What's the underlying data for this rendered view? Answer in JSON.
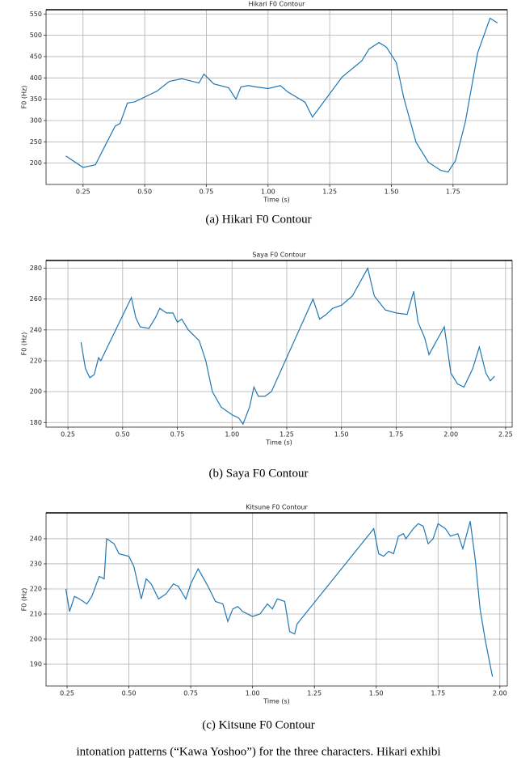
{
  "chart_data": [
    {
      "type": "line",
      "title": "Hikari F0 Contour",
      "xlabel": "Time (s)",
      "ylabel": "F0 (Hz)",
      "caption": "(a)  Hikari F0 Contour",
      "color": "#1f77b4",
      "grid": true,
      "xlim": [
        0.1,
        1.97
      ],
      "ylim": [
        150,
        560
      ],
      "xticks": [
        {
          "value": 0.25,
          "label": "0.25"
        },
        {
          "value": 0.5,
          "label": "0.50"
        },
        {
          "value": 0.75,
          "label": "0.75"
        },
        {
          "value": 1,
          "label": "1.00"
        },
        {
          "value": 1.25,
          "label": "1.25"
        },
        {
          "value": 1.5,
          "label": "1.50"
        },
        {
          "value": 1.75,
          "label": "1.75"
        }
      ],
      "yticks": [
        200,
        250,
        300,
        350,
        400,
        450,
        500,
        550
      ],
      "x": [
        0.18,
        0.25,
        0.3,
        0.38,
        0.4,
        0.43,
        0.46,
        0.55,
        0.6,
        0.65,
        0.72,
        0.74,
        0.78,
        0.84,
        0.87,
        0.89,
        0.92,
        0.95,
        1.0,
        1.05,
        1.08,
        1.15,
        1.18,
        1.3,
        1.38,
        1.41,
        1.45,
        1.48,
        1.52,
        1.55,
        1.6,
        1.65,
        1.7,
        1.73,
        1.76,
        1.8,
        1.85,
        1.9,
        1.93
      ],
      "values": [
        217,
        190,
        196,
        287,
        293,
        341,
        344,
        369,
        392,
        398,
        388,
        409,
        386,
        377,
        350,
        379,
        382,
        379,
        375,
        382,
        367,
        343,
        308,
        402,
        440,
        468,
        483,
        472,
        436,
        354,
        249,
        202,
        183,
        179,
        206,
        297,
        459,
        540,
        529
      ]
    },
    {
      "type": "line",
      "title": "Saya F0 Contour",
      "xlabel": "Time (s)",
      "ylabel": "F0 (Hz)",
      "caption": "(b)  Saya F0 Contour",
      "color": "#1f77b4",
      "grid": true,
      "xlim": [
        0.15,
        2.28
      ],
      "ylim": [
        177,
        285
      ],
      "xticks": [
        {
          "value": 0.25,
          "label": "0.25"
        },
        {
          "value": 0.5,
          "label": "0.50"
        },
        {
          "value": 0.75,
          "label": "0.75"
        },
        {
          "value": 1,
          "label": "1.00"
        },
        {
          "value": 1.25,
          "label": "1.25"
        },
        {
          "value": 1.5,
          "label": "1.50"
        },
        {
          "value": 1.75,
          "label": "1.75"
        },
        {
          "value": 2,
          "label": "2.00"
        },
        {
          "value": 2.25,
          "label": "2.25"
        }
      ],
      "yticks": [
        180,
        200,
        220,
        240,
        260,
        280
      ],
      "x": [
        0.31,
        0.33,
        0.35,
        0.37,
        0.39,
        0.4,
        0.54,
        0.56,
        0.58,
        0.62,
        0.65,
        0.67,
        0.7,
        0.73,
        0.75,
        0.77,
        0.8,
        0.85,
        0.88,
        0.91,
        0.95,
        1.0,
        1.03,
        1.05,
        1.08,
        1.1,
        1.12,
        1.15,
        1.18,
        1.37,
        1.4,
        1.43,
        1.46,
        1.5,
        1.55,
        1.62,
        1.65,
        1.7,
        1.75,
        1.8,
        1.83,
        1.85,
        1.88,
        1.9,
        1.97,
        2.0,
        2.03,
        2.06,
        2.1,
        2.13,
        2.16,
        2.18,
        2.2
      ],
      "values": [
        232,
        215,
        209,
        211,
        222,
        220,
        261,
        248,
        242,
        241,
        248,
        254,
        251,
        251,
        245,
        247,
        240,
        233,
        220,
        200,
        190,
        185,
        183,
        179,
        190,
        203,
        197,
        197,
        200,
        260,
        247,
        250,
        254,
        256,
        262,
        280,
        262,
        253,
        251,
        250,
        265,
        245,
        235,
        224,
        242,
        212,
        205,
        203,
        215,
        229,
        212,
        207,
        210
      ]
    },
    {
      "type": "line",
      "title": "Kitsune F0 Contour",
      "xlabel": "Time (s)",
      "ylabel": "F0 (Hz)",
      "caption": "(c)  Kitsune F0 Contour",
      "color": "#1f77b4",
      "grid": true,
      "xlim": [
        0.165,
        2.03
      ],
      "ylim": [
        181.3,
        250.3
      ],
      "xticks": [
        {
          "value": 0.25,
          "label": "0.25"
        },
        {
          "value": 0.5,
          "label": "0.50"
        },
        {
          "value": 0.75,
          "label": "0.75"
        },
        {
          "value": 1,
          "label": "1.00"
        },
        {
          "value": 1.25,
          "label": "1.25"
        },
        {
          "value": 1.5,
          "label": "1.50"
        },
        {
          "value": 1.75,
          "label": "1.75"
        },
        {
          "value": 2,
          "label": "2.00"
        }
      ],
      "yticks": [
        190,
        200,
        210,
        220,
        230,
        240
      ],
      "x": [
        0.245,
        0.26,
        0.28,
        0.3,
        0.33,
        0.35,
        0.38,
        0.4,
        0.41,
        0.44,
        0.46,
        0.5,
        0.52,
        0.55,
        0.57,
        0.59,
        0.62,
        0.65,
        0.68,
        0.7,
        0.73,
        0.75,
        0.78,
        0.82,
        0.85,
        0.88,
        0.9,
        0.92,
        0.94,
        0.96,
        1.0,
        1.03,
        1.06,
        1.08,
        1.1,
        1.13,
        1.15,
        1.17,
        1.18,
        1.49,
        1.51,
        1.53,
        1.55,
        1.57,
        1.59,
        1.61,
        1.62,
        1.65,
        1.67,
        1.69,
        1.71,
        1.73,
        1.75,
        1.78,
        1.8,
        1.83,
        1.85,
        1.88,
        1.9,
        1.92,
        1.94,
        1.96,
        1.97
      ],
      "values": [
        220,
        211,
        217,
        216,
        214,
        217,
        225,
        224,
        240,
        238,
        234,
        233,
        229,
        216,
        224,
        222,
        216,
        218,
        222,
        221,
        216,
        222,
        228,
        221,
        215,
        214,
        207,
        212,
        213,
        211,
        209,
        210,
        214,
        212,
        216,
        215,
        203,
        202,
        206,
        244,
        234,
        233,
        235,
        234,
        241,
        242,
        240,
        244,
        246,
        245,
        238,
        240,
        246,
        244,
        241,
        242,
        236,
        247,
        232,
        212,
        200,
        190,
        185
      ]
    }
  ],
  "body_text_fragment": "intonation patterns (“Kawa Yoshoo”) for the three characters. Hikari exhibi"
}
